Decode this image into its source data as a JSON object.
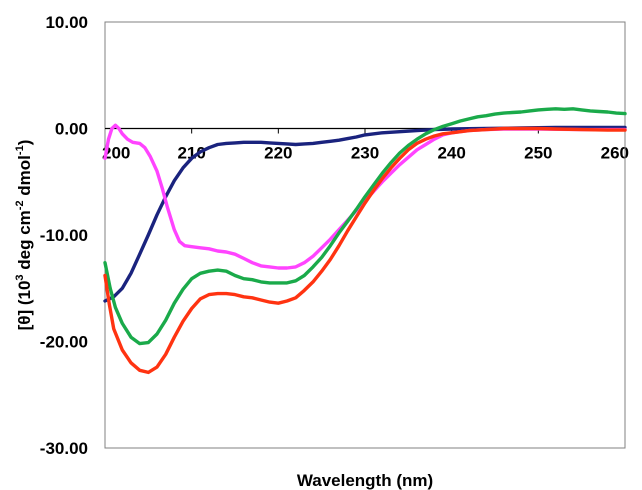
{
  "chart_data": {
    "type": "line",
    "title": "",
    "xlabel": "Wavelength (nm)",
    "ylabel_parts": [
      "[θ] (10",
      "3",
      " deg cm",
      "-2",
      " dmol",
      "-1",
      ")"
    ],
    "xlim": [
      200,
      260
    ],
    "ylim": [
      -30,
      10
    ],
    "x_ticks": [
      200,
      210,
      220,
      230,
      240,
      250,
      260
    ],
    "x_tick_labels": [
      "200",
      "210",
      "220",
      "230",
      "240",
      "250",
      "260"
    ],
    "y_ticks": [
      10,
      0,
      -10,
      -20,
      -30
    ],
    "y_tick_labels": [
      "10.00",
      "0.00",
      "-10.00",
      "-20.00",
      "-30.00"
    ],
    "grid": false,
    "legend": "none",
    "series": [
      {
        "color": "#1a237e",
        "points": [
          [
            200,
            -16.2
          ],
          [
            201,
            -15.8
          ],
          [
            202,
            -15.0
          ],
          [
            203,
            -13.6
          ],
          [
            204,
            -11.8
          ],
          [
            205,
            -10.0
          ],
          [
            206,
            -8.1
          ],
          [
            207,
            -6.4
          ],
          [
            208,
            -4.9
          ],
          [
            209,
            -3.7
          ],
          [
            210,
            -2.8
          ],
          [
            211,
            -2.2
          ],
          [
            212,
            -1.8
          ],
          [
            213,
            -1.5
          ],
          [
            214,
            -1.4
          ],
          [
            215,
            -1.35
          ],
          [
            216,
            -1.3
          ],
          [
            217,
            -1.3
          ],
          [
            218,
            -1.3
          ],
          [
            219,
            -1.35
          ],
          [
            220,
            -1.4
          ],
          [
            221,
            -1.45
          ],
          [
            222,
            -1.5
          ],
          [
            223,
            -1.45
          ],
          [
            224,
            -1.4
          ],
          [
            225,
            -1.3
          ],
          [
            226,
            -1.2
          ],
          [
            227,
            -1.1
          ],
          [
            228,
            -0.95
          ],
          [
            229,
            -0.8
          ],
          [
            230,
            -0.6
          ],
          [
            232,
            -0.4
          ],
          [
            234,
            -0.3
          ],
          [
            236,
            -0.2
          ],
          [
            238,
            -0.1
          ],
          [
            240,
            -0.05
          ],
          [
            244,
            0.0
          ],
          [
            248,
            0.05
          ],
          [
            252,
            0.1
          ],
          [
            256,
            0.1
          ],
          [
            260,
            0.1
          ]
        ]
      },
      {
        "color": "#ff44ff",
        "points": [
          [
            200,
            -2.8
          ],
          [
            200.4,
            -1.0
          ],
          [
            200.8,
            0.0
          ],
          [
            201.2,
            0.3
          ],
          [
            201.6,
            0.0
          ],
          [
            202,
            -0.5
          ],
          [
            202.6,
            -1.0
          ],
          [
            203.2,
            -1.3
          ],
          [
            204,
            -1.4
          ],
          [
            204.6,
            -1.8
          ],
          [
            205.2,
            -2.6
          ],
          [
            206,
            -4.0
          ],
          [
            206.6,
            -5.6
          ],
          [
            207.2,
            -7.4
          ],
          [
            208,
            -9.5
          ],
          [
            208.6,
            -10.6
          ],
          [
            209.2,
            -11.0
          ],
          [
            210,
            -11.1
          ],
          [
            211,
            -11.2
          ],
          [
            212,
            -11.3
          ],
          [
            213,
            -11.5
          ],
          [
            214,
            -11.6
          ],
          [
            215,
            -11.8
          ],
          [
            216,
            -12.2
          ],
          [
            217,
            -12.6
          ],
          [
            218,
            -12.9
          ],
          [
            219,
            -13.0
          ],
          [
            220,
            -13.1
          ],
          [
            221,
            -13.1
          ],
          [
            222,
            -13.0
          ],
          [
            223,
            -12.6
          ],
          [
            224,
            -12.0
          ],
          [
            225,
            -11.2
          ],
          [
            226,
            -10.4
          ],
          [
            227,
            -9.5
          ],
          [
            228,
            -8.6
          ],
          [
            229,
            -7.7
          ],
          [
            230,
            -6.8
          ],
          [
            231,
            -5.9
          ],
          [
            232,
            -5.0
          ],
          [
            233,
            -4.2
          ],
          [
            234,
            -3.4
          ],
          [
            235,
            -2.7
          ],
          [
            236,
            -2.0
          ],
          [
            237,
            -1.5
          ],
          [
            238,
            -1.0
          ],
          [
            239,
            -0.6
          ],
          [
            240,
            -0.4
          ],
          [
            241,
            -0.3
          ],
          [
            242,
            -0.2
          ],
          [
            244,
            -0.1
          ],
          [
            246,
            -0.05
          ],
          [
            250,
            -0.05
          ],
          [
            255,
            -0.1
          ],
          [
            260,
            -0.1
          ]
        ]
      },
      {
        "color": "#1aaa4a",
        "points": [
          [
            200,
            -12.6
          ],
          [
            200.6,
            -15.0
          ],
          [
            201.2,
            -16.8
          ],
          [
            202,
            -18.3
          ],
          [
            203,
            -19.6
          ],
          [
            204,
            -20.2
          ],
          [
            205,
            -20.1
          ],
          [
            206,
            -19.3
          ],
          [
            207,
            -18.0
          ],
          [
            208,
            -16.4
          ],
          [
            209,
            -15.1
          ],
          [
            210,
            -14.1
          ],
          [
            211,
            -13.6
          ],
          [
            212,
            -13.4
          ],
          [
            213,
            -13.3
          ],
          [
            214,
            -13.4
          ],
          [
            215,
            -13.8
          ],
          [
            216,
            -14.1
          ],
          [
            217,
            -14.2
          ],
          [
            218,
            -14.4
          ],
          [
            219,
            -14.5
          ],
          [
            220,
            -14.5
          ],
          [
            221,
            -14.5
          ],
          [
            222,
            -14.3
          ],
          [
            223,
            -13.8
          ],
          [
            224,
            -13.0
          ],
          [
            225,
            -12.1
          ],
          [
            226,
            -11.0
          ],
          [
            227,
            -9.8
          ],
          [
            228,
            -8.7
          ],
          [
            229,
            -7.6
          ],
          [
            230,
            -6.4
          ],
          [
            231,
            -5.3
          ],
          [
            232,
            -4.2
          ],
          [
            233,
            -3.2
          ],
          [
            234,
            -2.3
          ],
          [
            235,
            -1.6
          ],
          [
            236,
            -1.0
          ],
          [
            237,
            -0.5
          ],
          [
            238,
            -0.1
          ],
          [
            239,
            0.2
          ],
          [
            240,
            0.45
          ],
          [
            241,
            0.7
          ],
          [
            242,
            0.9
          ],
          [
            243,
            1.1
          ],
          [
            244,
            1.2
          ],
          [
            245,
            1.35
          ],
          [
            246,
            1.45
          ],
          [
            247,
            1.5
          ],
          [
            248,
            1.55
          ],
          [
            249,
            1.65
          ],
          [
            250,
            1.75
          ],
          [
            251,
            1.8
          ],
          [
            252,
            1.85
          ],
          [
            253,
            1.8
          ],
          [
            254,
            1.85
          ],
          [
            255,
            1.75
          ],
          [
            256,
            1.65
          ],
          [
            257,
            1.6
          ],
          [
            258,
            1.55
          ],
          [
            259,
            1.45
          ],
          [
            260,
            1.4
          ]
        ]
      },
      {
        "color": "#ff3311",
        "points": [
          [
            200,
            -13.8
          ],
          [
            200.5,
            -16.5
          ],
          [
            201,
            -18.8
          ],
          [
            202,
            -20.8
          ],
          [
            203,
            -22.0
          ],
          [
            204,
            -22.7
          ],
          [
            205,
            -22.9
          ],
          [
            206,
            -22.4
          ],
          [
            207,
            -21.2
          ],
          [
            208,
            -19.6
          ],
          [
            209,
            -18.1
          ],
          [
            210,
            -16.9
          ],
          [
            211,
            -16.0
          ],
          [
            212,
            -15.6
          ],
          [
            213,
            -15.5
          ],
          [
            214,
            -15.5
          ],
          [
            215,
            -15.6
          ],
          [
            216,
            -15.8
          ],
          [
            217,
            -15.9
          ],
          [
            218,
            -16.1
          ],
          [
            219,
            -16.3
          ],
          [
            220,
            -16.4
          ],
          [
            221,
            -16.2
          ],
          [
            222,
            -15.9
          ],
          [
            223,
            -15.2
          ],
          [
            224,
            -14.4
          ],
          [
            225,
            -13.4
          ],
          [
            226,
            -12.3
          ],
          [
            227,
            -11.0
          ],
          [
            228,
            -9.6
          ],
          [
            229,
            -8.3
          ],
          [
            230,
            -7.0
          ],
          [
            231,
            -5.8
          ],
          [
            232,
            -4.7
          ],
          [
            233,
            -3.7
          ],
          [
            234,
            -2.8
          ],
          [
            235,
            -2.0
          ],
          [
            236,
            -1.4
          ],
          [
            237,
            -1.0
          ],
          [
            238,
            -0.7
          ],
          [
            239,
            -0.5
          ],
          [
            240,
            -0.4
          ],
          [
            241,
            -0.3
          ],
          [
            242,
            -0.2
          ],
          [
            244,
            -0.1
          ],
          [
            246,
            0.0
          ],
          [
            248,
            0.0
          ],
          [
            250,
            0.0
          ],
          [
            252,
            -0.05
          ],
          [
            255,
            -0.1
          ],
          [
            258,
            -0.15
          ],
          [
            260,
            -0.15
          ]
        ]
      }
    ]
  }
}
